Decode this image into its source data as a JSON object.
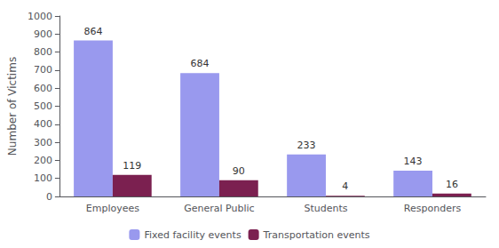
{
  "chart_data": {
    "type": "bar",
    "categories": [
      "Employees",
      "General Public",
      "Students",
      "Responders"
    ],
    "series": [
      {
        "name": "Fixed facility events",
        "color": "#9999EE",
        "values": [
          864,
          684,
          233,
          143
        ]
      },
      {
        "name": "Transportation events",
        "color": "#7B2050",
        "values": [
          119,
          90,
          4,
          16
        ]
      }
    ],
    "ylabel": "Number of Victims",
    "ylim": [
      0,
      1000
    ],
    "yticks": [
      0,
      100,
      200,
      300,
      400,
      500,
      600,
      700,
      800,
      900,
      1000
    ],
    "grid": false,
    "legend": "bottom",
    "data_labels": true
  }
}
